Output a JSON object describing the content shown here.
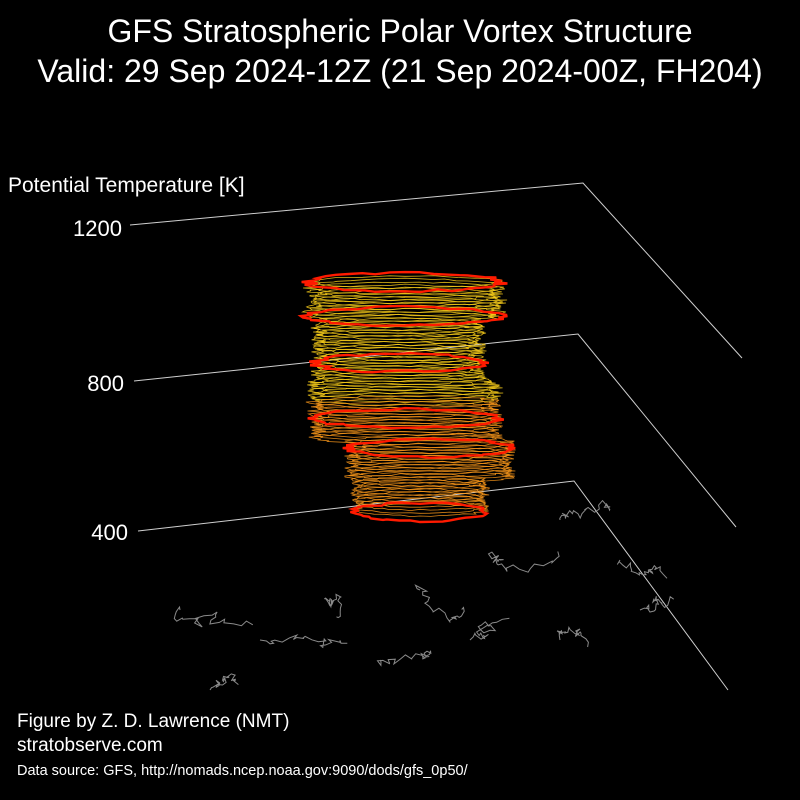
{
  "header": {
    "title_line_1": "GFS Stratospheric Polar Vortex Structure",
    "title_line_2": "Valid: 29 Sep 2024-12Z  (21 Sep 2024-00Z, FH204)"
  },
  "chart_data": {
    "type": "3d-contour-stack",
    "z_label": "Potential Temperature [K]",
    "z_ticks": [
      1200,
      800,
      400
    ],
    "z_range": [
      400,
      1200
    ],
    "series": [
      {
        "name": "",
        "color": "#ff1a00",
        "levels_K": [
          1040,
          960,
          850,
          720,
          650,
          500
        ]
      }
    ],
    "fill_colors": [
      "#ffd21a",
      "#ff9a1a"
    ],
    "basemap": "Northern Hemisphere coastlines",
    "basemap_color": "#8a8a8a",
    "grid_color": "#cfcfcf"
  },
  "footer": {
    "author": "Figure by Z. D. Lawrence (NMT)",
    "site": "stratobserve.com",
    "source": "Data source: GFS, http://nomads.ncep.noaa.gov:9090/dods/gfs_0p50/"
  }
}
